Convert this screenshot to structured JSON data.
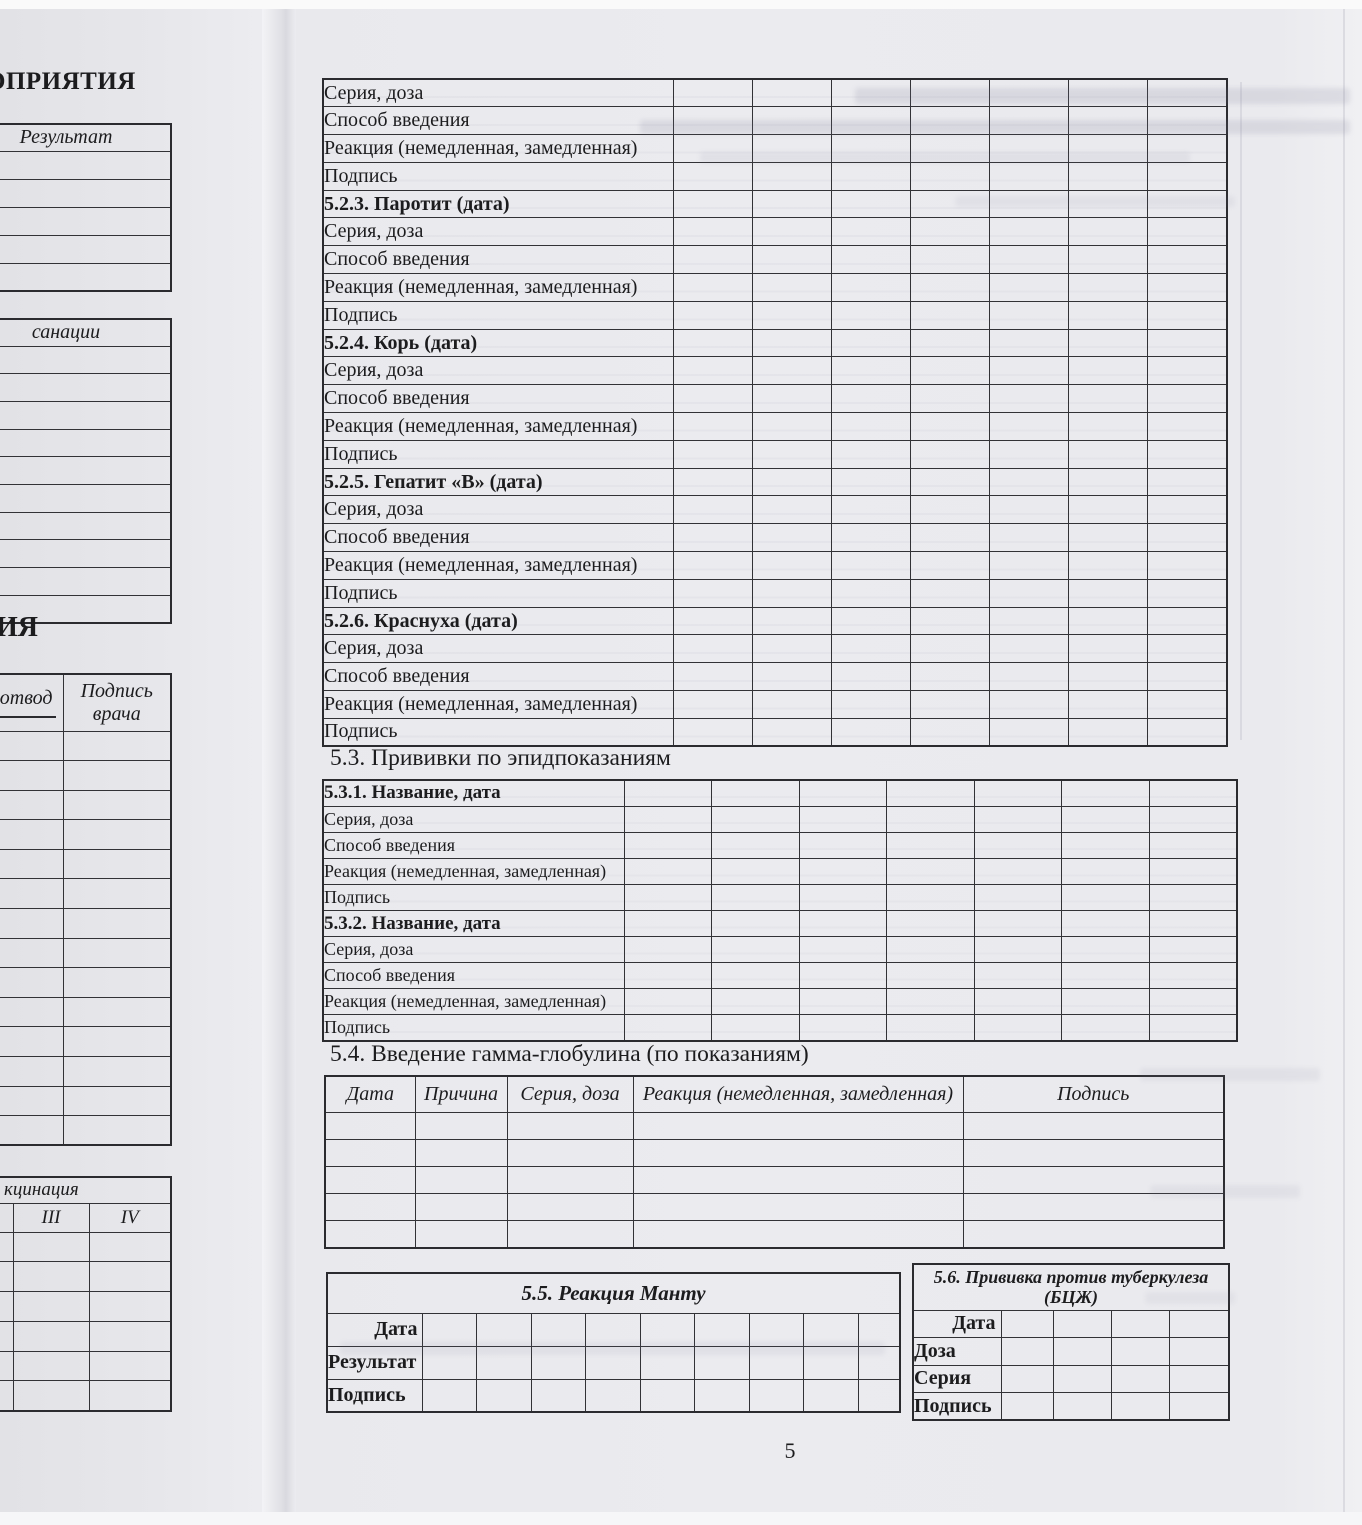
{
  "page_number": "5",
  "left_page_fragment": {
    "top_heading_fragment": "ОПРИЯТИЯ",
    "results_table": {
      "header": "Результат"
    },
    "sanation_table": {
      "header": "санации"
    },
    "mid_heading_fragment": "ИЯ",
    "exemption_table": {
      "col_exemption_fragment": "отвод",
      "col_doctor_signature": "Подпись врача"
    },
    "revaccination_table": {
      "header_fragment": "кцинация",
      "col_3": "III",
      "col_4": "IV"
    }
  },
  "main_page": {
    "immunization_table": {
      "rows": [
        {
          "label": "Серия, доза"
        },
        {
          "label": "Способ введения"
        },
        {
          "label": "Реакция (немедленная, замедленная)"
        },
        {
          "label": "Подпись"
        },
        {
          "label": "5.2.3. Паротит (дата)",
          "bold": true
        },
        {
          "label": "Серия, доза"
        },
        {
          "label": "Способ введения"
        },
        {
          "label": "Реакция (немедленная, замедленная)"
        },
        {
          "label": "Подпись"
        },
        {
          "label": "5.2.4. Корь (дата)",
          "bold": true
        },
        {
          "label": "Серия, доза"
        },
        {
          "label": "Способ введения"
        },
        {
          "label": "Реакция (немедленная, замедленная)"
        },
        {
          "label": "Подпись"
        },
        {
          "label": "5.2.5. Гепатит «В» (дата)",
          "bold": true
        },
        {
          "label": "Серия, доза"
        },
        {
          "label": "Способ введения"
        },
        {
          "label": "Реакция (немедленная, замедленная)"
        },
        {
          "label": "Подпись"
        },
        {
          "label": "5.2.6. Краснуха (дата)",
          "bold": true
        },
        {
          "label": "Серия, доза"
        },
        {
          "label": "Способ введения"
        },
        {
          "label": "Реакция (немедленная, замедленная)"
        },
        {
          "label": "Подпись"
        }
      ]
    },
    "epid_section": {
      "title": "5.3. Прививки по эпидпоказаниям",
      "rows": [
        {
          "label": "5.3.1. Название, дата",
          "bold": true
        },
        {
          "label": "Серия, доза"
        },
        {
          "label": "Способ введения"
        },
        {
          "label": "Реакция (немедленная, замедленная)"
        },
        {
          "label": "Подпись"
        },
        {
          "label": "5.3.2. Название, дата",
          "bold": true
        },
        {
          "label": "Серия, доза"
        },
        {
          "label": "Способ введения"
        },
        {
          "label": "Реакция (немедленная, замедленная)"
        },
        {
          "label": "Подпись"
        }
      ]
    },
    "gamma_globulin_section": {
      "title": "5.4. Введение гамма-глобулина (по показаниям)",
      "headers": [
        "Дата",
        "Причина",
        "Серия, доза",
        "Реакция (немедленная, замедленная)",
        "Подпись"
      ]
    },
    "mantoux_table": {
      "title": "5.5. Реакция Манту",
      "row_labels": [
        "Дата",
        "Результат",
        "Подпись"
      ]
    },
    "bcg_table": {
      "title_line1": "5.6. Прививка против туберкулеза",
      "title_line2": "(БЦЖ)",
      "row_labels": [
        "Дата",
        "Доза",
        "Серия",
        "Подпись"
      ]
    }
  }
}
